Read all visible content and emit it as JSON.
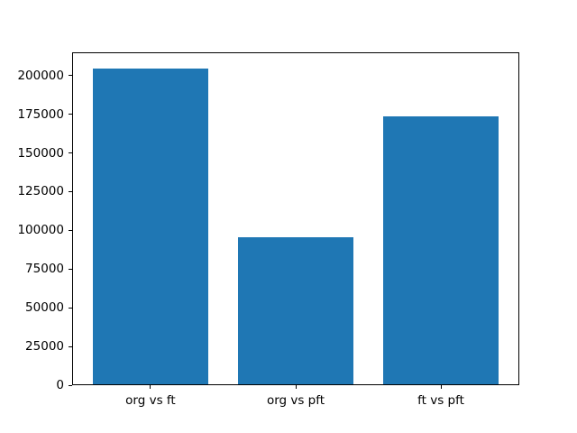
{
  "chart_data": {
    "type": "bar",
    "categories": [
      "org vs ft",
      "org vs pft",
      "ft vs pft"
    ],
    "values": [
      204800,
      95700,
      173800
    ],
    "title": "",
    "xlabel": "",
    "ylabel": "",
    "ylim": [
      0,
      215000
    ],
    "xlim": [
      -0.54,
      2.54
    ],
    "yticks": [
      0,
      25000,
      50000,
      75000,
      100000,
      125000,
      150000,
      175000,
      200000
    ],
    "bar_width_units": 0.8,
    "bar_color": "#1f77b4",
    "axis_color": "#000000",
    "background_color": "#ffffff",
    "grid": false,
    "legend": null
  }
}
